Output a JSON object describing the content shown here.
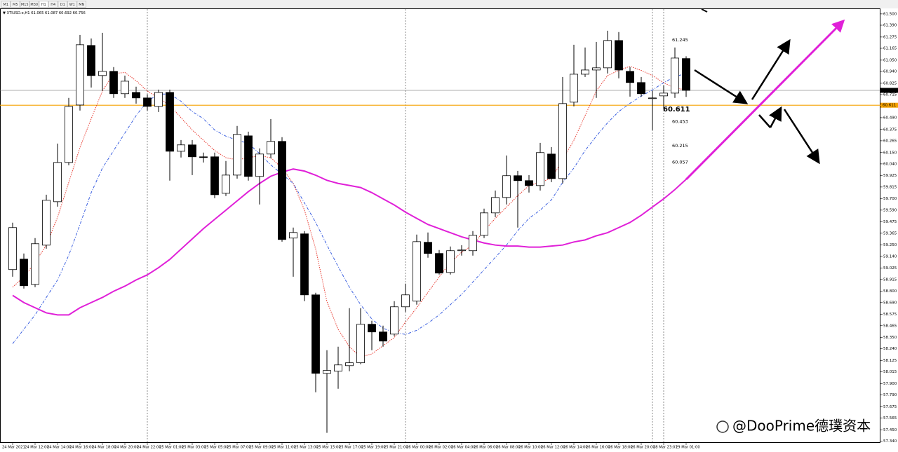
{
  "toolbar": {
    "timeframes": [
      "M1",
      "M5",
      "M15",
      "M30",
      "H1",
      "H4",
      "D1",
      "W1",
      "MN"
    ],
    "active": "H1"
  },
  "watermark": "@DooPrime德璞资本",
  "chart_data": {
    "type": "candlestick",
    "symbol": "XTIUSD.e,H1",
    "categories": [
      "24 Mar 2021",
      null,
      "24 Mar 12:00",
      null,
      "24 Mar 14:00",
      null,
      "24 Mar 16:00",
      null,
      "24 Mar 18:00",
      null,
      "24 Mar 20:00",
      null,
      "24 Mar 22:00",
      null,
      "25 Mar 01:00",
      null,
      "25 Mar 03:00",
      null,
      "25 Mar 05:00",
      null,
      "25 Mar 07:00",
      null,
      "25 Mar 09:00",
      null,
      "25 Mar 11:00",
      null,
      "25 Mar 13:00",
      null,
      "25 Mar 15:00",
      null,
      "25 Mar 17:00",
      null,
      "25 Mar 19:00",
      null,
      "25 Mar 21:00",
      null,
      "26 Mar 00:00",
      null,
      "26 Mar 02:00",
      null,
      "26 Mar 04:00",
      null,
      "26 Mar 06:00",
      null,
      "26 Mar 08:00",
      null,
      "26 Mar 10:00",
      null,
      "26 Mar 12:00",
      null,
      "26 Mar 14:00",
      null,
      "26 Mar 16:00",
      null,
      "26 Mar 18:00",
      null,
      "26 Mar 20:00",
      null,
      "28 Mar 23:01",
      null,
      "29 Mar 01:00"
    ],
    "open": [
      59.011,
      59.113,
      58.867,
      59.249,
      59.672,
      60.054,
      60.613,
      61.193,
      60.9,
      60.941,
      60.723,
      60.736,
      60.682,
      60.6,
      60.736,
      60.163,
      60.225,
      60.109,
      60.109,
      59.754,
      59.931,
      60.313,
      59.918,
      60.136,
      60.259,
      59.318,
      59.359,
      58.765,
      58.001,
      58.022,
      58.076,
      58.104,
      58.479,
      58.404,
      58.383,
      58.649,
      58.704,
      59.277,
      59.168,
      58.983,
      59.195,
      59.195,
      59.345,
      59.563,
      59.713,
      59.925,
      59.877,
      59.829,
      60.136,
      59.897,
      60.641,
      60.913,
      60.954,
      60.975,
      61.241,
      60.941,
      60.832,
      60.682,
      60.702,
      60.729,
      61.065
    ],
    "high": [
      59.468,
      59.168,
      59.318,
      59.74,
      60.238,
      60.682,
      61.295,
      61.261,
      61.316,
      60.982,
      60.9,
      60.791,
      60.716,
      60.763,
      60.763,
      60.272,
      60.272,
      60.15,
      60.15,
      60.068,
      60.409,
      60.354,
      60.191,
      60.477,
      60.3,
      59.42,
      59.386,
      58.786,
      58.226,
      58.26,
      58.636,
      58.636,
      58.513,
      58.465,
      58.704,
      58.874,
      59.352,
      59.372,
      59.202,
      59.236,
      59.249,
      59.386,
      59.604,
      59.781,
      60.122,
      59.972,
      59.931,
      60.245,
      60.204,
      60.886,
      61.2,
      61.173,
      61.227,
      61.336,
      61.323,
      60.982,
      60.886,
      60.75,
      60.804,
      61.173,
      61.087
    ],
    "low": [
      58.942,
      58.827,
      58.84,
      59.215,
      59.624,
      60.027,
      60.559,
      60.784,
      60.75,
      60.682,
      60.682,
      60.627,
      60.559,
      60.545,
      59.877,
      60.102,
      59.931,
      60.054,
      59.706,
      59.727,
      59.897,
      59.877,
      59.645,
      60.095,
      59.283,
      58.942,
      58.704,
      57.817,
      57.422,
      57.851,
      58.022,
      58.09,
      58.226,
      58.26,
      58.363,
      58.601,
      58.67,
      59.127,
      58.963,
      58.963,
      59.147,
      59.147,
      59.318,
      59.522,
      59.645,
      59.42,
      59.761,
      59.781,
      59.863,
      59.85,
      60.6,
      60.886,
      60.682,
      60.92,
      60.873,
      60.695,
      60.695,
      60.368,
      60.579,
      60.682,
      60.692
    ],
    "close": [
      59.42,
      58.854,
      59.263,
      59.686,
      60.054,
      60.6,
      61.2,
      60.9,
      60.941,
      60.723,
      60.845,
      60.682,
      60.6,
      60.736,
      60.163,
      60.225,
      60.109,
      60.102,
      59.74,
      59.931,
      60.327,
      59.918,
      60.136,
      60.259,
      59.304,
      59.372,
      58.765,
      58.001,
      58.029,
      58.083,
      58.104,
      58.479,
      58.404,
      58.315,
      58.649,
      58.765,
      59.283,
      59.168,
      58.977,
      59.195,
      59.202,
      59.345,
      59.563,
      59.713,
      59.925,
      59.877,
      59.829,
      60.15,
      59.897,
      60.627,
      60.913,
      60.954,
      60.975,
      61.241,
      60.954,
      60.832,
      60.723,
      60.682,
      60.729,
      61.07,
      60.756
    ],
    "bull_color": "#ffffff",
    "bear_color": "#000000",
    "lines": [
      {
        "color": "#e8392f",
        "style": "dotted",
        "width": 1,
        "values": [
          58.84,
          58.94,
          59.08,
          59.25,
          59.52,
          59.86,
          60.2,
          60.48,
          60.75,
          60.92,
          60.93,
          60.85,
          60.75,
          60.68,
          60.61,
          60.49,
          60.37,
          60.27,
          60.17,
          60.1,
          60.08,
          60.1,
          60.12,
          60.1,
          60.0,
          59.85,
          59.59,
          59.21,
          58.7,
          58.43,
          58.26,
          58.16,
          58.19,
          58.27,
          58.35,
          58.5,
          58.64,
          58.79,
          58.94,
          59.08,
          59.18,
          59.25,
          59.39,
          59.51,
          59.62,
          59.73,
          59.83,
          59.86,
          59.9,
          60.08,
          60.27,
          60.51,
          60.75,
          60.9,
          60.95,
          60.99,
          60.95,
          60.9,
          60.83,
          60.78,
          60.76
        ]
      },
      {
        "color": "#3a5fe0",
        "style": "dashdot",
        "width": 1,
        "values": [
          58.29,
          58.43,
          58.57,
          58.74,
          58.91,
          59.15,
          59.45,
          59.76,
          60.0,
          60.17,
          60.34,
          60.51,
          60.65,
          60.72,
          60.72,
          60.65,
          60.55,
          60.48,
          60.37,
          60.31,
          60.27,
          60.24,
          60.14,
          60.03,
          59.94,
          59.85,
          59.66,
          59.47,
          59.25,
          59.04,
          58.84,
          58.67,
          58.53,
          58.44,
          58.4,
          58.38,
          58.42,
          58.49,
          58.57,
          58.67,
          58.77,
          58.89,
          59.01,
          59.13,
          59.25,
          59.39,
          59.51,
          59.59,
          59.69,
          59.86,
          60.0,
          60.17,
          60.31,
          60.44,
          60.55,
          60.63,
          60.7,
          60.76,
          60.83,
          60.89,
          60.92
        ]
      },
      {
        "color": "#e020d8",
        "style": "solid",
        "width": 2,
        "values": [
          58.76,
          58.69,
          58.64,
          58.59,
          58.57,
          58.57,
          58.64,
          58.69,
          58.74,
          58.8,
          58.85,
          58.91,
          58.96,
          59.03,
          59.11,
          59.21,
          59.31,
          59.41,
          59.5,
          59.59,
          59.68,
          59.77,
          59.85,
          59.92,
          59.96,
          59.99,
          59.97,
          59.93,
          59.88,
          59.85,
          59.83,
          59.81,
          59.76,
          59.7,
          59.64,
          59.57,
          59.51,
          59.45,
          59.41,
          59.37,
          59.33,
          59.3,
          59.27,
          59.25,
          59.24,
          59.24,
          59.23,
          59.23,
          59.24,
          59.25,
          59.28,
          59.3,
          59.34,
          59.37,
          59.42,
          59.47,
          59.54,
          59.62,
          59.7,
          59.79,
          59.89
        ]
      }
    ],
    "support_line": {
      "value": 60.611,
      "color": "#f5a200"
    },
    "levels": [
      61.245,
      60.453,
      60.215,
      60.057
    ],
    "ylim": [
      57.29,
      61.54
    ],
    "yticks": [
      {
        "value": 61.5,
        "label": "61.500"
      },
      {
        "value": 61.39,
        "label": "61.390"
      },
      61.275,
      61.165,
      {
        "value": 61.05,
        "label": "61.050"
      },
      {
        "value": 60.94,
        "label": "60.940"
      },
      60.825,
      60.715,
      {
        "value": 60.49,
        "label": "60.490"
      },
      60.375,
      60.265,
      {
        "value": 60.15,
        "label": "60.150"
      },
      {
        "value": 60.04,
        "label": "60.040"
      },
      59.925,
      59.815,
      {
        "value": 59.7,
        "label": "59.700"
      },
      {
        "value": 59.59,
        "label": "59.590"
      },
      59.475,
      59.365,
      {
        "value": 59.25,
        "label": "59.250"
      },
      {
        "value": 59.14,
        "label": "59.140"
      },
      59.025,
      58.915,
      {
        "value": 58.8,
        "label": "58.800"
      },
      {
        "value": 58.69,
        "label": "58.690"
      },
      58.575,
      58.465,
      {
        "value": 58.35,
        "label": "58.350"
      },
      {
        "value": 58.24,
        "label": "58.240"
      },
      58.125,
      58.015,
      {
        "value": 57.9,
        "label": "57.900"
      },
      {
        "value": 57.79,
        "label": "57.790"
      },
      57.675,
      57.565,
      {
        "value": 57.45,
        "label": "57.450"
      },
      {
        "value": 57.34,
        "label": "57.340"
      }
    ],
    "grid": false
  }
}
